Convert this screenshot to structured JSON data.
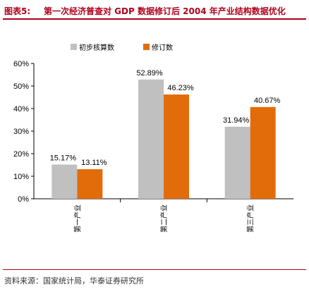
{
  "header": {
    "label": "图表5:",
    "title": "第一次经济普查对 GDP 数据修订后 2004 年产业结构数据优化"
  },
  "source": "资料来源：国家统计局，华泰证券研究所",
  "colors": {
    "accent": "#b0001b",
    "series_initial": "#c0c0c0",
    "series_revised": "#e36c0a"
  },
  "chart_data": {
    "type": "bar",
    "categories": [
      "第一产业",
      "第二产业",
      "第三产业"
    ],
    "series": [
      {
        "name": "初步核算数",
        "values": [
          15.17,
          52.89,
          31.94
        ],
        "labels": [
          "15.17%",
          "52.89%",
          "31.94%"
        ]
      },
      {
        "name": "修订数",
        "values": [
          13.11,
          46.23,
          40.67
        ],
        "labels": [
          "13.11%",
          "46.23%",
          "40.67%"
        ]
      }
    ],
    "ylim": [
      0,
      60
    ],
    "yticks": [
      "0%",
      "10%",
      "20%",
      "30%",
      "40%",
      "50%",
      "60%"
    ],
    "legend": "top-left",
    "grid": false
  }
}
